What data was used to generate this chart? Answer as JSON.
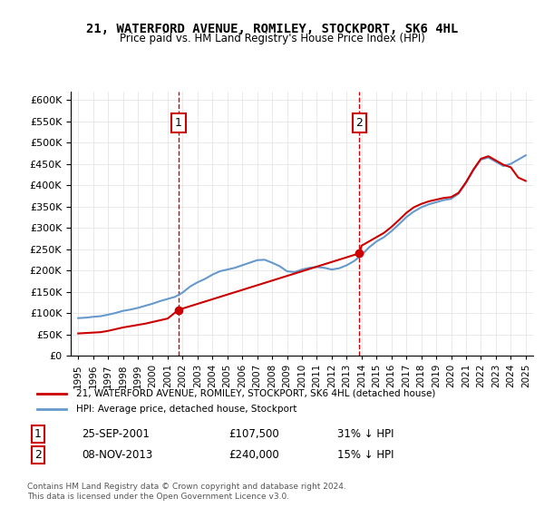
{
  "title": "21, WATERFORD AVENUE, ROMILEY, STOCKPORT, SK6 4HL",
  "subtitle": "Price paid vs. HM Land Registry's House Price Index (HPI)",
  "legend_line1": "21, WATERFORD AVENUE, ROMILEY, STOCKPORT, SK6 4HL (detached house)",
  "legend_line2": "HPI: Average price, detached house, Stockport",
  "annotation1_label": "1",
  "annotation1_date": "25-SEP-2001",
  "annotation1_price": "£107,500",
  "annotation1_hpi": "31% ↓ HPI",
  "annotation2_label": "2",
  "annotation2_date": "08-NOV-2013",
  "annotation2_price": "£240,000",
  "annotation2_hpi": "15% ↓ HPI",
  "footer": "Contains HM Land Registry data © Crown copyright and database right 2024.\nThis data is licensed under the Open Government Licence v3.0.",
  "sale_color": "#cc0000",
  "hpi_color": "#6699cc",
  "vline_color": "#cc0000",
  "background_color": "#ffffff",
  "ylim": [
    0,
    620000
  ],
  "sale1_x": 2001.73,
  "sale1_y": 107500,
  "sale2_x": 2013.85,
  "sale2_y": 240000,
  "hpi_years": [
    1995,
    1995.5,
    1996,
    1996.5,
    1997,
    1997.5,
    1998,
    1998.5,
    1999,
    1999.5,
    2000,
    2000.5,
    2001,
    2001.5,
    2002,
    2002.5,
    2003,
    2003.5,
    2004,
    2004.5,
    2005,
    2005.5,
    2006,
    2006.5,
    2007,
    2007.5,
    2008,
    2008.5,
    2009,
    2009.5,
    2010,
    2010.5,
    2011,
    2011.5,
    2012,
    2012.5,
    2013,
    2013.5,
    2014,
    2014.5,
    2015,
    2015.5,
    2016,
    2016.5,
    2017,
    2017.5,
    2018,
    2018.5,
    2019,
    2019.5,
    2020,
    2020.5,
    2021,
    2021.5,
    2022,
    2022.5,
    2023,
    2023.5,
    2024,
    2024.5,
    2025
  ],
  "hpi_values": [
    88000,
    89000,
    91000,
    92500,
    96000,
    100000,
    105000,
    108000,
    112000,
    117000,
    122000,
    128000,
    133000,
    138000,
    148000,
    162000,
    172000,
    180000,
    190000,
    198000,
    202000,
    206000,
    212000,
    218000,
    224000,
    225000,
    218000,
    210000,
    198000,
    196000,
    202000,
    206000,
    208000,
    206000,
    202000,
    205000,
    212000,
    222000,
    236000,
    254000,
    268000,
    278000,
    292000,
    308000,
    325000,
    338000,
    348000,
    355000,
    360000,
    365000,
    368000,
    380000,
    405000,
    435000,
    460000,
    465000,
    455000,
    445000,
    450000,
    460000,
    470000
  ],
  "price_years": [
    1995,
    1995.5,
    1996,
    1996.5,
    1997,
    1997.5,
    1998,
    1998.5,
    1999,
    1999.5,
    2000,
    2000.5,
    2001,
    2001.73,
    2013.85,
    2014,
    2014.5,
    2015,
    2015.5,
    2016,
    2016.5,
    2017,
    2017.5,
    2018,
    2018.5,
    2019,
    2019.5,
    2020,
    2020.5,
    2021,
    2021.5,
    2022,
    2022.5,
    2023,
    2023.5,
    2024,
    2024.5,
    2025
  ],
  "price_values": [
    52000,
    53000,
    54000,
    55000,
    58000,
    62000,
    66000,
    69000,
    72000,
    75000,
    79000,
    83000,
    87000,
    107500,
    240000,
    258000,
    268000,
    278000,
    288000,
    302000,
    318000,
    335000,
    348000,
    356000,
    362000,
    366000,
    370000,
    372000,
    382000,
    407000,
    437000,
    462000,
    468000,
    458000,
    448000,
    442000,
    418000,
    410000
  ],
  "xlim": [
    1994.5,
    2025.5
  ],
  "xticks": [
    1995,
    1996,
    1997,
    1998,
    1999,
    2000,
    2001,
    2002,
    2003,
    2004,
    2005,
    2006,
    2007,
    2008,
    2009,
    2010,
    2011,
    2012,
    2013,
    2014,
    2015,
    2016,
    2017,
    2018,
    2019,
    2020,
    2021,
    2022,
    2023,
    2024,
    2025
  ]
}
